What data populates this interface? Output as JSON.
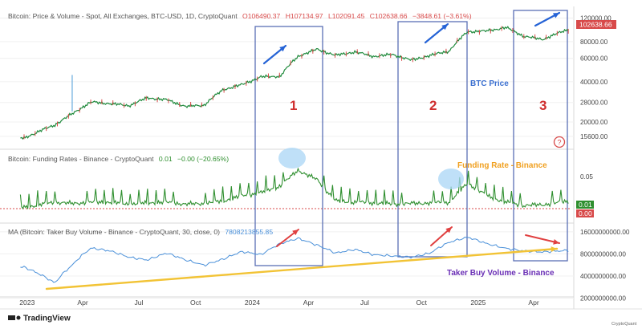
{
  "colors": {
    "price": "#1f8a3c",
    "price_down": "#d84a4a",
    "funding": "#2f8f2f",
    "taker": "#4a90d9",
    "zone_box": "#5a6fb5",
    "arrow_blue": "#2563d6",
    "arrow_red": "#e04040",
    "trend_yellow": "#f2c335",
    "bubble": "#a9d6f5",
    "orange": "#f0a020"
  },
  "header": {
    "price": {
      "title": "Bitcoin: Price & Volume - Spot, All Exchanges, BTC-USD, 1D, CryptoQuant",
      "open": "O106490.37",
      "high": "H107134.97",
      "low": "L102091.45",
      "close": "C102638.66",
      "change": "−3848.61 (−3.61%)"
    },
    "funding": {
      "title": "Bitcoin: Funding Rates - Binance - CryptoQuant",
      "value": "0.01",
      "change": "−0.00 (−20.65%)"
    },
    "taker": {
      "title": "MA (Bitcoin: Taker Buy Volume - Binance - CryptoQuant, 30, close, 0)",
      "value": "7808213855.85"
    }
  },
  "annotations": {
    "zones": [
      "1",
      "2",
      "3"
    ],
    "btc_label": "BTC Price",
    "funding_label": "Funding Rate - Binance",
    "taker_label": "Taker Buy Volume - Binance",
    "help": "?"
  },
  "badges": {
    "price": "102638.66",
    "funding_top": "0.01",
    "funding_bottom": "0.00"
  },
  "brand": {
    "tradingview": "TradingView",
    "watermark": "CryptoQuant"
  },
  "chart_data": [
    {
      "type": "line",
      "name": "Bitcoin: Price & Volume - Spot, All Exchanges, BTC-USD, 1D, CryptoQuant",
      "x_ticks": [
        "2023",
        "Apr",
        "Jul",
        "Oct",
        "2024",
        "Apr",
        "Jul",
        "Oct",
        "2025",
        "Apr"
      ],
      "y_scale": "log",
      "y_ticks": [
        15600,
        20000,
        28000,
        40000,
        60000,
        80000,
        120000
      ],
      "y_tick_labels": [
        "15600.00",
        "20000.00",
        "28000.00",
        "40000.00",
        "60000.00",
        "80000.00",
        "120000.00"
      ],
      "x": [
        "2023-01",
        "2023-02",
        "2023-03",
        "2023-04",
        "2023-05",
        "2023-06",
        "2023-07",
        "2023-08",
        "2023-09",
        "2023-10",
        "2023-11",
        "2023-12",
        "2024-01",
        "2024-02",
        "2024-03",
        "2024-04",
        "2024-05",
        "2024-06",
        "2024-07",
        "2024-08",
        "2024-09",
        "2024-10",
        "2024-11",
        "2024-12",
        "2025-01",
        "2025-02",
        "2025-03",
        "2025-04",
        "2025-05"
      ],
      "values": [
        16600,
        19000,
        23000,
        28200,
        27500,
        26500,
        30300,
        29300,
        26100,
        26800,
        35000,
        38000,
        43500,
        44000,
        62000,
        70000,
        63000,
        67000,
        62000,
        64000,
        58000,
        63000,
        68000,
        95000,
        96000,
        102000,
        88000,
        83000,
        94000
      ],
      "last_value": 102638.66
    },
    {
      "type": "line",
      "name": "Bitcoin: Funding Rates - Binance - CryptoQuant",
      "y_ticks": [
        0.05
      ],
      "y_tick_labels": [
        "0.05"
      ],
      "x": [
        "2023-01",
        "2023-02",
        "2023-03",
        "2023-04",
        "2023-05",
        "2023-06",
        "2023-07",
        "2023-08",
        "2023-09",
        "2023-10",
        "2023-11",
        "2023-12",
        "2024-01",
        "2024-02",
        "2024-03",
        "2024-04",
        "2024-05",
        "2024-06",
        "2024-07",
        "2024-08",
        "2024-09",
        "2024-10",
        "2024-11",
        "2024-12",
        "2025-01",
        "2025-02",
        "2025-03",
        "2025-04",
        "2025-05"
      ],
      "values": [
        0.005,
        0.01,
        0.008,
        0.01,
        0.01,
        0.007,
        0.009,
        0.01,
        0.007,
        0.008,
        0.012,
        0.02,
        0.025,
        0.035,
        0.06,
        0.045,
        0.012,
        0.01,
        0.009,
        0.007,
        0.008,
        0.009,
        0.01,
        0.04,
        0.02,
        0.01,
        0.005,
        0.006,
        0.01
      ],
      "last_value": 0.01
    },
    {
      "type": "line",
      "name": "MA (Bitcoin: Taker Buy Volume - Binance - CryptoQuant, 30, close, 0)",
      "y_ticks": [
        2000000000,
        4000000000,
        8000000000,
        16000000000
      ],
      "y_tick_labels": [
        "2000000000.00",
        "4000000000.00",
        "8000000000.00",
        "16000000000.00"
      ],
      "x": [
        "2023-01",
        "2023-02",
        "2023-03",
        "2023-04",
        "2023-05",
        "2023-06",
        "2023-07",
        "2023-08",
        "2023-09",
        "2023-10",
        "2023-11",
        "2023-12",
        "2024-01",
        "2024-02",
        "2024-03",
        "2024-04",
        "2024-05",
        "2024-06",
        "2024-07",
        "2024-08",
        "2024-09",
        "2024-10",
        "2024-11",
        "2024-12",
        "2025-01",
        "2025-02",
        "2025-03",
        "2025-04",
        "2025-05"
      ],
      "values": [
        4500000000,
        3200000000,
        5600000000,
        9600000000,
        8800000000,
        7200000000,
        6600000000,
        8200000000,
        6600000000,
        5600000000,
        6800000000,
        8600000000,
        7800000000,
        11000000000,
        13000000000,
        10500000000,
        8200000000,
        9200000000,
        7800000000,
        7500000000,
        7200000000,
        8200000000,
        11500000000,
        13500000000,
        11000000000,
        9500000000,
        8800000000,
        8500000000,
        8800000000
      ],
      "last_value": 7808213855.85
    }
  ]
}
